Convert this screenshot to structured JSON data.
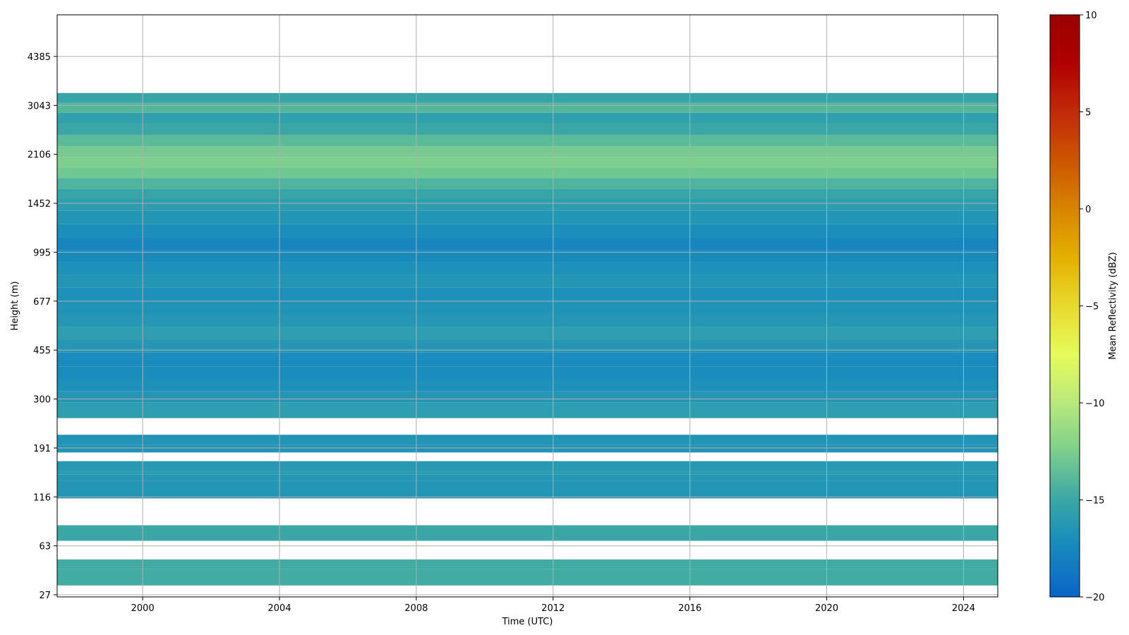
{
  "chart_data": {
    "type": "heatmap",
    "title": "",
    "xlabel": "Time (UTC)",
    "ylabel": "Height (m)",
    "xlim": [
      1997.5,
      2025.0
    ],
    "xticks": [
      2000,
      2004,
      2008,
      2012,
      2016,
      2020,
      2024
    ],
    "xtick_labels": [
      "2000",
      "2004",
      "2008",
      "2012",
      "2016",
      "2020",
      "2024"
    ],
    "yticks": [
      27,
      63,
      116,
      191,
      300,
      455,
      677,
      995,
      1452,
      2106,
      3043,
      4385
    ],
    "ytick_labels": [
      "27",
      "63",
      "116",
      "191",
      "300",
      "455",
      "677",
      "995",
      "1452",
      "2106",
      "3043",
      "4385"
    ],
    "grid": true,
    "colorbar": {
      "label": "Mean Reflectivity (dBZ)",
      "range": [
        -20,
        10
      ],
      "ticks": [
        -20,
        -15,
        -10,
        -5,
        0,
        5,
        10
      ],
      "tick_labels": [
        "−20",
        "−15",
        "−10",
        "−5",
        "0",
        "5",
        "10"
      ],
      "stops": [
        [
          -20,
          "#0a64c8"
        ],
        [
          -17,
          "#1a8fbc"
        ],
        [
          -15,
          "#3aa7a6"
        ],
        [
          -12.5,
          "#7ccf8c"
        ],
        [
          -10,
          "#b9e97c"
        ],
        [
          -7.5,
          "#e6fb5a"
        ],
        [
          -5,
          "#e8da2e"
        ],
        [
          -2.5,
          "#e4b000"
        ],
        [
          0,
          "#d88400"
        ],
        [
          2.5,
          "#cc5500"
        ],
        [
          5,
          "#c22a08"
        ],
        [
          7.5,
          "#b00000"
        ],
        [
          10,
          "#9a0000"
        ]
      ]
    },
    "rows": [
      {
        "height": 35,
        "value": -14.7
      },
      {
        "height": 42,
        "value": -14.7
      },
      {
        "height": 72,
        "value": -15.0
      },
      {
        "height": 121,
        "value": -16.4
      },
      {
        "height": 129,
        "value": -16.4
      },
      {
        "height": 137,
        "value": -16.3
      },
      {
        "height": 146,
        "value": -15.9
      },
      {
        "height": 151,
        "value": -16.2
      },
      {
        "height": 193,
        "value": -16.5
      },
      {
        "height": 197,
        "value": -16.5
      },
      {
        "height": 265,
        "value": -15.8
      },
      {
        "height": 290,
        "value": -16.3
      },
      {
        "height": 320,
        "value": -16.8
      },
      {
        "height": 355,
        "value": -17.1
      },
      {
        "height": 395,
        "value": -17.2
      },
      {
        "height": 445,
        "value": -16.3
      },
      {
        "height": 495,
        "value": -15.8
      },
      {
        "height": 550,
        "value": -16.3
      },
      {
        "height": 610,
        "value": -16.6
      },
      {
        "height": 680,
        "value": -16.8
      },
      {
        "height": 755,
        "value": -16.4
      },
      {
        "height": 835,
        "value": -16.8
      },
      {
        "height": 920,
        "value": -17.3
      },
      {
        "height": 1010,
        "value": -17.6
      },
      {
        "height": 1115,
        "value": -17.0
      },
      {
        "height": 1235,
        "value": -16.4
      },
      {
        "height": 1370,
        "value": -15.8
      },
      {
        "height": 1500,
        "value": -15.2
      },
      {
        "height": 1620,
        "value": -14.2
      },
      {
        "height": 1760,
        "value": -13.0
      },
      {
        "height": 1900,
        "value": -12.5
      },
      {
        "height": 2060,
        "value": -12.8
      },
      {
        "height": 2240,
        "value": -13.8
      },
      {
        "height": 2440,
        "value": -15.0
      },
      {
        "height": 2650,
        "value": -15.6
      },
      {
        "height": 2880,
        "value": -14.0
      },
      {
        "height": 3100,
        "value": -15.2
      }
    ]
  }
}
